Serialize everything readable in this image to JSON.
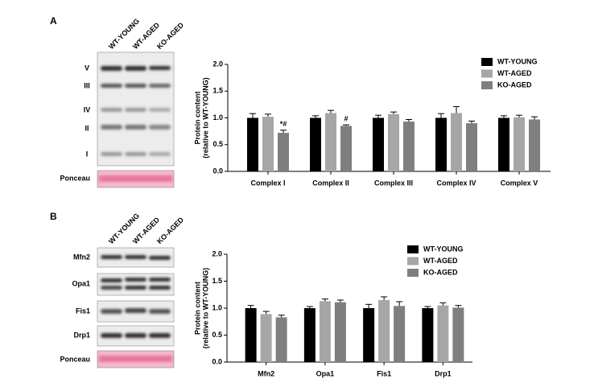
{
  "panels": [
    {
      "letter": "A",
      "lanes": [
        "WT-YOUNG",
        "WT-AGED",
        "KO-AGED"
      ],
      "blot_labels": [
        "V",
        "III",
        "IV",
        "II",
        "I",
        "Ponceau"
      ]
    },
    {
      "letter": "B",
      "lanes": [
        "WT-YOUNG",
        "WT-AGED",
        "KO-AGED"
      ],
      "blot_labels": [
        "Mfn2",
        "Opa1",
        "Fis1",
        "Drp1",
        "Ponceau"
      ]
    }
  ],
  "chart_data": [
    {
      "type": "bar",
      "ylabel": [
        "Protein content",
        "(relative to WT-YOUNG)"
      ],
      "categories": [
        "Complex I",
        "Complex II",
        "Complex III",
        "Complex IV",
        "Complex V"
      ],
      "series": [
        {
          "name": "WT-YOUNG",
          "color": "#000000",
          "values": [
            1.0,
            1.0,
            1.0,
            1.0,
            1.0
          ],
          "errors": [
            0.08,
            0.04,
            0.05,
            0.08,
            0.04
          ]
        },
        {
          "name": "WT-AGED",
          "color": "#a6a6a6",
          "values": [
            1.02,
            1.09,
            1.07,
            1.09,
            1.01
          ],
          "errors": [
            0.05,
            0.05,
            0.04,
            0.12,
            0.04
          ]
        },
        {
          "name": "KO-AGED",
          "color": "#7f7f7f",
          "values": [
            0.72,
            0.85,
            0.93,
            0.9,
            0.97
          ],
          "errors": [
            0.05,
            0.02,
            0.04,
            0.04,
            0.05
          ]
        }
      ],
      "annotations": [
        {
          "text": "*#",
          "category": "Complex I",
          "series": "KO-AGED"
        },
        {
          "text": "#",
          "category": "Complex II",
          "series": "KO-AGED"
        }
      ],
      "ylim": [
        0,
        2
      ],
      "yticks": [
        {
          "value": 0,
          "label": "0.0"
        },
        0.5,
        {
          "value": 1,
          "label": "1.0"
        },
        1.5,
        {
          "value": 2,
          "label": "2.0"
        }
      ],
      "legend": "top-right"
    },
    {
      "type": "bar",
      "ylabel": [
        "Protein content",
        "(relative to WT-YOUNG)"
      ],
      "categories": [
        "Mfn2",
        "Opa1",
        "Fis1",
        "Drp1"
      ],
      "series": [
        {
          "name": "WT-YOUNG",
          "color": "#000000",
          "values": [
            1.0,
            1.0,
            1.0,
            1.0
          ],
          "errors": [
            0.05,
            0.03,
            0.07,
            0.03
          ]
        },
        {
          "name": "WT-AGED",
          "color": "#a6a6a6",
          "values": [
            0.89,
            1.13,
            1.15,
            1.05
          ],
          "errors": [
            0.05,
            0.04,
            0.06,
            0.05
          ]
        },
        {
          "name": "KO-AGED",
          "color": "#7f7f7f",
          "values": [
            0.83,
            1.11,
            1.04,
            1.01
          ],
          "errors": [
            0.04,
            0.04,
            0.08,
            0.04
          ]
        }
      ],
      "annotations": [],
      "ylim": [
        0,
        2
      ],
      "yticks": [
        {
          "value": 0,
          "label": "0.0"
        },
        0.5,
        {
          "value": 1,
          "label": "1.0"
        },
        1.5,
        {
          "value": 2,
          "label": "2.0"
        }
      ],
      "legend": "top-right"
    }
  ]
}
